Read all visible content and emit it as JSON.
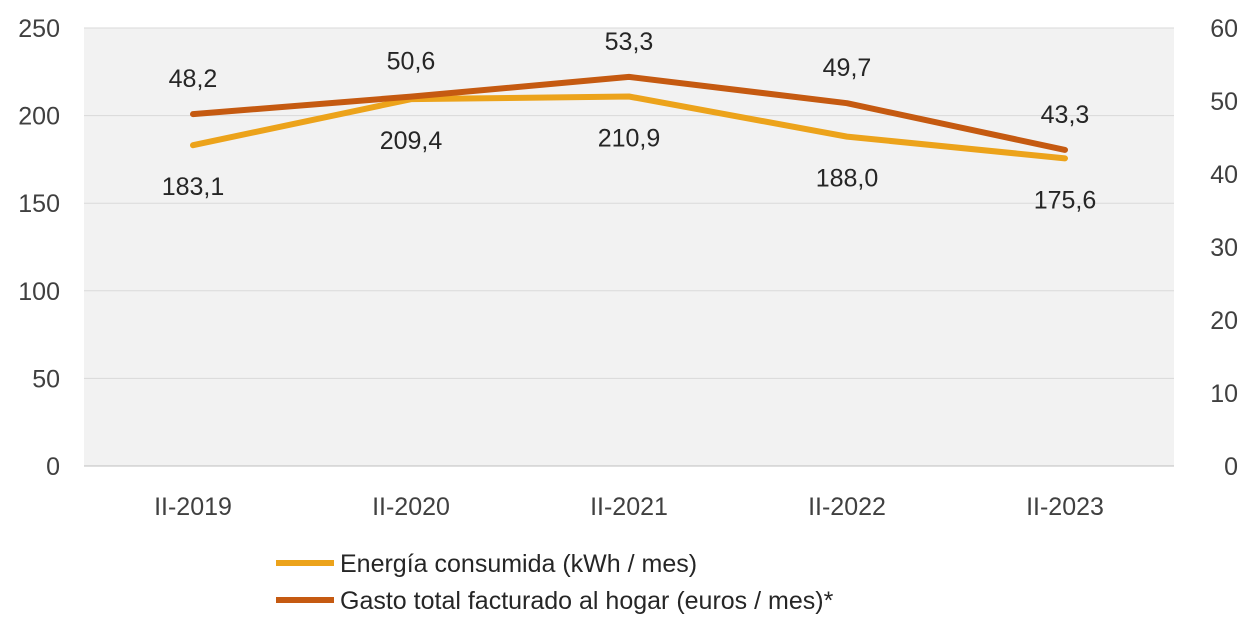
{
  "chart_data": {
    "type": "line",
    "categories": [
      "II-2019",
      "II-2020",
      "II-2021",
      "II-2022",
      "II-2023"
    ],
    "series": [
      {
        "name": "Energía consumida (kWh / mes)",
        "axis": "left",
        "color": "#ECA31B",
        "values": [
          183.1,
          209.4,
          210.9,
          188.0,
          175.6
        ],
        "labels": [
          "183,1",
          "209,4",
          "210,9",
          "188,0",
          "175,6"
        ]
      },
      {
        "name": "Gasto total facturado al hogar (euros / mes)*",
        "axis": "right",
        "color": "#C55A11",
        "values": [
          48.2,
          50.6,
          53.3,
          49.7,
          43.3
        ],
        "labels": [
          "48,2",
          "50,6",
          "53,3",
          "49,7",
          "43,3"
        ]
      }
    ],
    "y_left": {
      "min": 0,
      "max": 250,
      "ticks": [
        "0",
        "50",
        "100",
        "150",
        "200",
        "250"
      ]
    },
    "y_right": {
      "min": 0,
      "max": 60,
      "ticks": [
        "0",
        "10",
        "20",
        "30",
        "40",
        "50",
        "60"
      ]
    },
    "grid": true,
    "legend_position": "bottom",
    "plot_background": "#F2F2F2",
    "grid_color": "#D9D9D9"
  }
}
